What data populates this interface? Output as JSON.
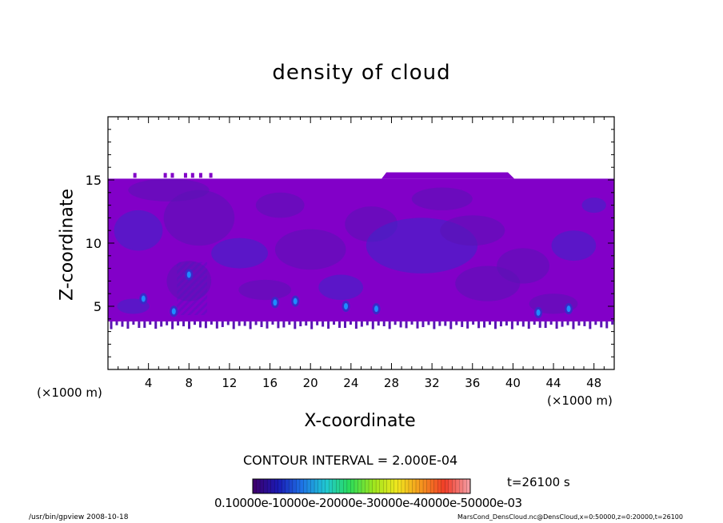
{
  "chart_data": {
    "type": "heatmap",
    "title": "density of cloud",
    "xlabel": "X-coordinate",
    "ylabel": "Z-coordinate",
    "x_unit": "(×1000 m)",
    "y_unit": "(×1000 m)",
    "xlim": [
      0,
      50
    ],
    "ylim": [
      0,
      20
    ],
    "xticks": [
      4,
      8,
      12,
      16,
      20,
      24,
      28,
      32,
      36,
      40,
      44,
      48
    ],
    "yticks": [
      5,
      10,
      15
    ],
    "field": {
      "cloud_base_km": 3.8,
      "cloud_top_km": 15.1,
      "cloud_top_bump": {
        "x_start": 27.5,
        "x_end": 39.5,
        "top_km": 15.6
      },
      "dominant_value": "≈1.0e-04 to 2.0e-04",
      "peak_cells": [
        {
          "x": 16.5,
          "z": 5.3
        },
        {
          "x": 18.5,
          "z": 5.4
        },
        {
          "x": 23.5,
          "z": 5.0
        },
        {
          "x": 26.5,
          "z": 4.8
        },
        {
          "x": 6.5,
          "z": 4.6
        },
        {
          "x": 3.5,
          "z": 5.6
        },
        {
          "x": 42.5,
          "z": 4.5
        },
        {
          "x": 45.5,
          "z": 4.8
        },
        {
          "x": 8.0,
          "z": 7.5
        }
      ]
    },
    "contour_interval": "CONTOUR INTERVAL = 2.000E-04",
    "colorbar": {
      "label_text": "0.10000e-10000e-20000e-30000e-40000e-50000e-03",
      "stops": [
        "#3d006e",
        "#1a1ab4",
        "#1e74e6",
        "#20c8d2",
        "#2adc5a",
        "#9ee61e",
        "#f0e61e",
        "#f5961e",
        "#f03c28",
        "#f59aa0"
      ]
    },
    "time": "t=26100 s"
  },
  "colors": {
    "cloud_fill": "#8200c8",
    "cloud_dark": "#5a14b4",
    "cloud_deep": "#3c28c8",
    "cloud_peak": "#1e8cff"
  },
  "footer": {
    "left": "/usr/bin/gpview   2008-10-18",
    "right": "MarsCond_DensCloud.nc@DensCloud,x=0:50000,z=0:20000,t=26100"
  }
}
